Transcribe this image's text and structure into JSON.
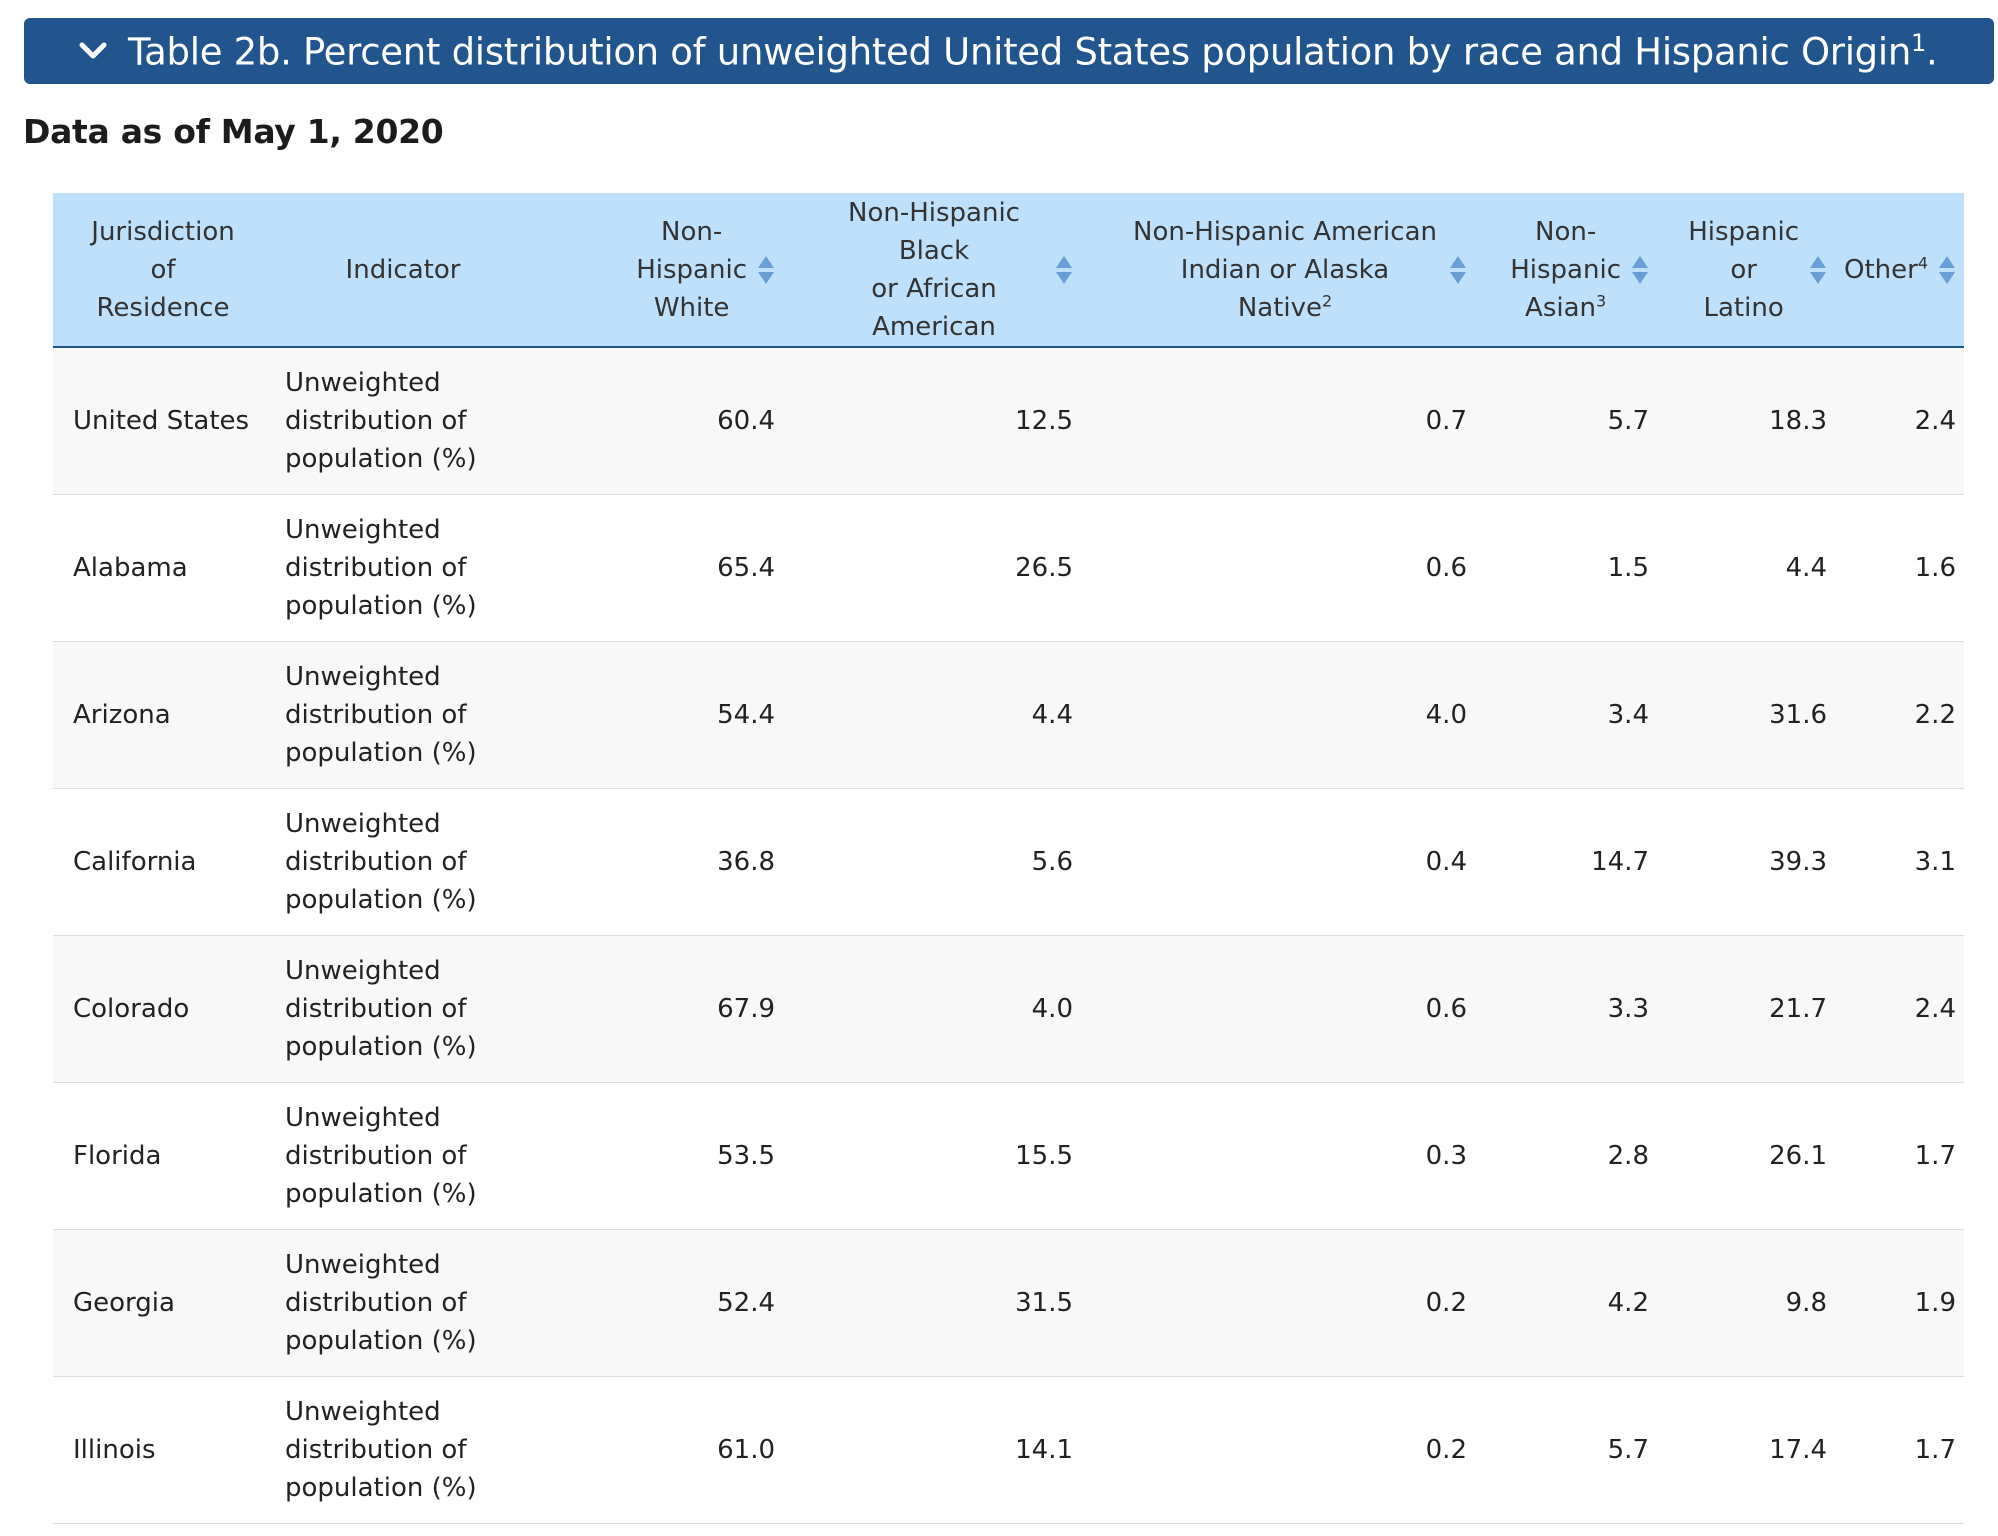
{
  "header": {
    "title": "Table 2b. Percent distribution of unweighted United States population by race and Hispanic Origin",
    "title_sup": "1",
    "suffix": ".",
    "expanded_icon": "chevron-down-icon",
    "bg_color": "#22548e"
  },
  "data_date": "Data as of May 1, 2020",
  "table": {
    "header_bg": "#bee0fb",
    "columns": {
      "jurisdiction": {
        "lines": [
          "Jurisdiction",
          "of",
          "Residence"
        ]
      },
      "indicator": {
        "label": "Indicator"
      },
      "nh_white": {
        "lines": [
          "Non-",
          "Hispanic",
          "White"
        ],
        "sortable": true
      },
      "nh_black": {
        "lines": [
          "Non-Hispanic Black",
          "or African",
          "American"
        ],
        "sortable": true
      },
      "nh_aian": {
        "lines": [
          "Non-Hispanic American",
          "Indian or Alaska Native"
        ],
        "sup": "2",
        "sortable": true
      },
      "nh_asian": {
        "lines": [
          "Non-",
          "Hispanic",
          "Asian"
        ],
        "sup": "3",
        "sortable": true
      },
      "hispanic": {
        "lines": [
          "Hispanic",
          "or",
          "Latino"
        ],
        "sortable": true
      },
      "other": {
        "label": "Other",
        "sup": "4",
        "sortable": true
      }
    },
    "rows": [
      {
        "jurisdiction": "United States",
        "indicator": [
          "Unweighted",
          "distribution of",
          "population (%)"
        ],
        "nh_white": "60.4",
        "nh_black": "12.5",
        "nh_aian": "0.7",
        "nh_asian": "5.7",
        "hispanic": "18.3",
        "other": "2.4"
      },
      {
        "jurisdiction": "Alabama",
        "indicator": [
          "Unweighted",
          "distribution of",
          "population (%)"
        ],
        "nh_white": "65.4",
        "nh_black": "26.5",
        "nh_aian": "0.6",
        "nh_asian": "1.5",
        "hispanic": "4.4",
        "other": "1.6"
      },
      {
        "jurisdiction": "Arizona",
        "indicator": [
          "Unweighted",
          "distribution of",
          "population (%)"
        ],
        "nh_white": "54.4",
        "nh_black": "4.4",
        "nh_aian": "4.0",
        "nh_asian": "3.4",
        "hispanic": "31.6",
        "other": "2.2"
      },
      {
        "jurisdiction": "California",
        "indicator": [
          "Unweighted",
          "distribution of",
          "population (%)"
        ],
        "nh_white": "36.8",
        "nh_black": "5.6",
        "nh_aian": "0.4",
        "nh_asian": "14.7",
        "hispanic": "39.3",
        "other": "3.1"
      },
      {
        "jurisdiction": "Colorado",
        "indicator": [
          "Unweighted",
          "distribution of",
          "population (%)"
        ],
        "nh_white": "67.9",
        "nh_black": "4.0",
        "nh_aian": "0.6",
        "nh_asian": "3.3",
        "hispanic": "21.7",
        "other": "2.4"
      },
      {
        "jurisdiction": "Florida",
        "indicator": [
          "Unweighted",
          "distribution of",
          "population (%)"
        ],
        "nh_white": "53.5",
        "nh_black": "15.5",
        "nh_aian": "0.3",
        "nh_asian": "2.8",
        "hispanic": "26.1",
        "other": "1.7"
      },
      {
        "jurisdiction": "Georgia",
        "indicator": [
          "Unweighted",
          "distribution of",
          "population (%)"
        ],
        "nh_white": "52.4",
        "nh_black": "31.5",
        "nh_aian": "0.2",
        "nh_asian": "4.2",
        "hispanic": "9.8",
        "other": "1.9"
      },
      {
        "jurisdiction": "Illinois",
        "indicator": [
          "Unweighted",
          "distribution of",
          "population (%)"
        ],
        "nh_white": "61.0",
        "nh_black": "14.1",
        "nh_aian": "0.2",
        "nh_asian": "5.7",
        "hispanic": "17.4",
        "other": "1.7"
      }
    ]
  }
}
